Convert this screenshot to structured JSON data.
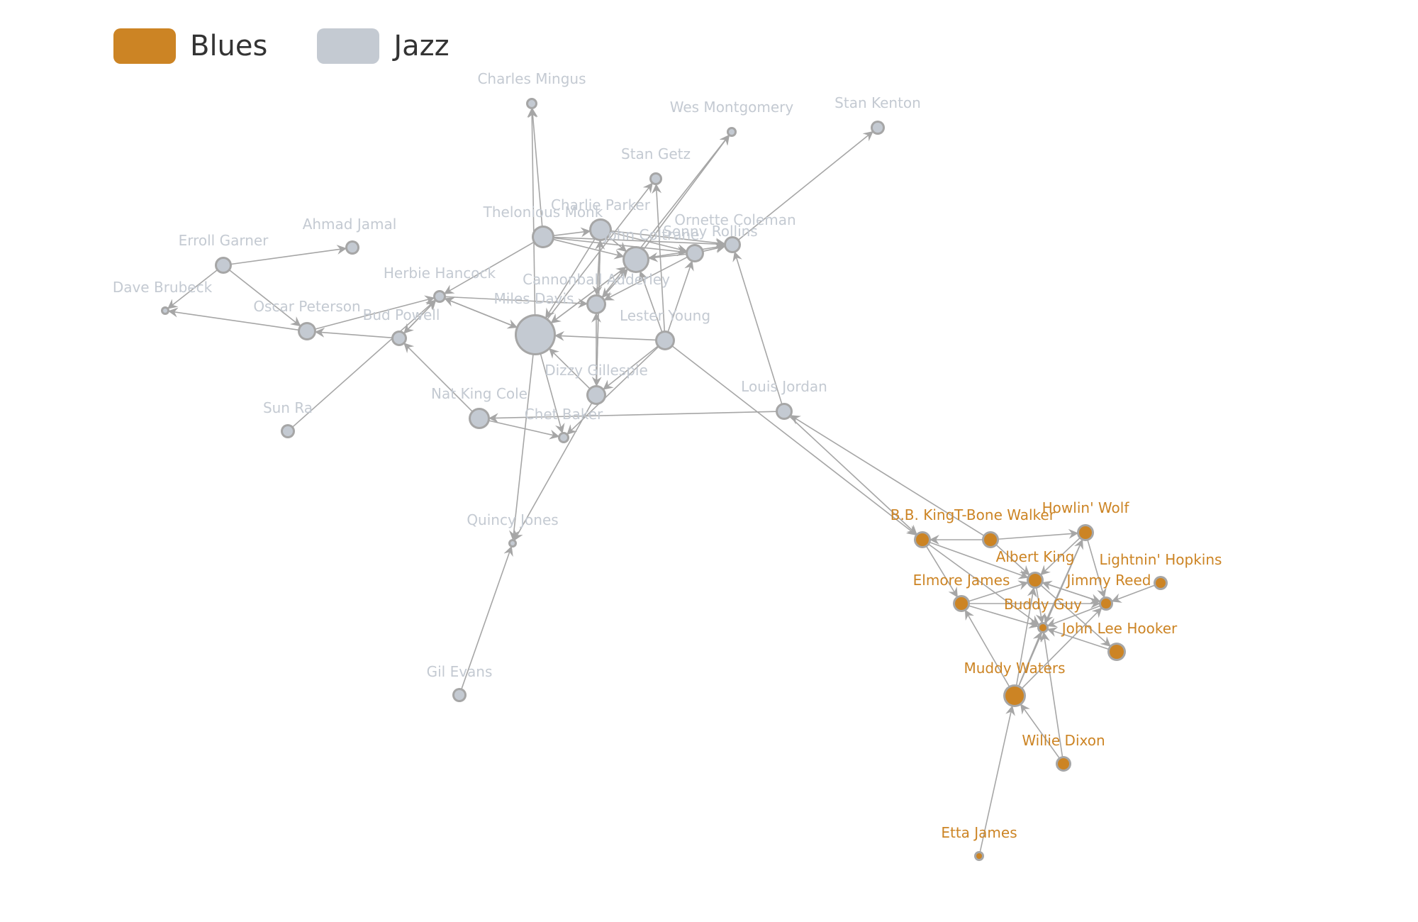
{
  "legend": {
    "items": [
      {
        "label": "Blues",
        "color": "#cc8424"
      },
      {
        "label": "Jazz",
        "color": "#c4cad2"
      }
    ]
  },
  "colors": {
    "blues": "#cc8424",
    "jazz": "#c4cad2",
    "edge": "#a6a6a6",
    "node_ring": "#a6a6a6"
  },
  "nodes": [
    {
      "id": "charles-mingus",
      "label": "Charles Mingus",
      "group": "jazz"
    },
    {
      "id": "wes-montgomery",
      "label": "Wes Montgomery",
      "group": "jazz"
    },
    {
      "id": "stan-kenton",
      "label": "Stan Kenton",
      "group": "jazz"
    },
    {
      "id": "stan-getz",
      "label": "Stan Getz",
      "group": "jazz"
    },
    {
      "id": "charlie-parker",
      "label": "Charlie Parker",
      "group": "jazz"
    },
    {
      "id": "thelonious-monk",
      "label": "Thelonious Monk",
      "group": "jazz"
    },
    {
      "id": "john-coltrane",
      "label": "John Coltrane",
      "group": "jazz"
    },
    {
      "id": "sonny-rollins",
      "label": "Sonny Rollins",
      "group": "jazz"
    },
    {
      "id": "ornette-coleman",
      "label": "Ornette Coleman",
      "group": "jazz"
    },
    {
      "id": "erroll-garner",
      "label": "Erroll Garner",
      "group": "jazz"
    },
    {
      "id": "ahmad-jamal",
      "label": "Ahmad Jamal",
      "group": "jazz"
    },
    {
      "id": "herbie-hancock",
      "label": "Herbie Hancock",
      "group": "jazz"
    },
    {
      "id": "dave-brubeck",
      "label": "Dave Brubeck",
      "group": "jazz"
    },
    {
      "id": "cannonball-adderley",
      "label": "Cannonball Adderley",
      "group": "jazz"
    },
    {
      "id": "miles-davis",
      "label": "Miles Davis",
      "group": "jazz"
    },
    {
      "id": "oscar-peterson",
      "label": "Oscar Peterson",
      "group": "jazz"
    },
    {
      "id": "bud-powell",
      "label": "Bud Powell",
      "group": "jazz"
    },
    {
      "id": "lester-young",
      "label": "Lester Young",
      "group": "jazz"
    },
    {
      "id": "dizzy-gillespie",
      "label": "Dizzy Gillespie",
      "group": "jazz"
    },
    {
      "id": "louis-jordan",
      "label": "Louis Jordan",
      "group": "jazz"
    },
    {
      "id": "nat-king-cole",
      "label": "Nat King Cole",
      "group": "jazz"
    },
    {
      "id": "sun-ra",
      "label": "Sun Ra",
      "group": "jazz"
    },
    {
      "id": "chet-baker",
      "label": "Chet Baker",
      "group": "jazz"
    },
    {
      "id": "quincy-jones",
      "label": "Quincy Jones",
      "group": "jazz"
    },
    {
      "id": "gil-evans",
      "label": "Gil Evans",
      "group": "jazz"
    },
    {
      "id": "howlin-wolf",
      "label": "Howlin' Wolf",
      "group": "blues"
    },
    {
      "id": "bb-king",
      "label": "B.B. King",
      "group": "blues"
    },
    {
      "id": "t-bone-walker",
      "label": "T-Bone Walker",
      "group": "blues"
    },
    {
      "id": "albert-king",
      "label": "Albert King",
      "group": "blues"
    },
    {
      "id": "lightnin-hopkins",
      "label": "Lightnin' Hopkins",
      "group": "blues"
    },
    {
      "id": "elmore-james",
      "label": "Elmore James",
      "group": "blues"
    },
    {
      "id": "jimmy-reed",
      "label": "Jimmy Reed",
      "group": "blues"
    },
    {
      "id": "buddy-guy",
      "label": "Buddy Guy",
      "group": "blues"
    },
    {
      "id": "john-lee-hooker",
      "label": "John Lee Hooker",
      "group": "blues"
    },
    {
      "id": "muddy-waters",
      "label": "Muddy Waters",
      "group": "blues"
    },
    {
      "id": "willie-dixon",
      "label": "Willie Dixon",
      "group": "blues"
    },
    {
      "id": "etta-james",
      "label": "Etta James",
      "group": "blues"
    }
  ],
  "edges": [
    [
      "thelonious-monk",
      "charles-mingus"
    ],
    [
      "miles-davis",
      "charles-mingus"
    ],
    [
      "john-coltrane",
      "wes-montgomery"
    ],
    [
      "cannonball-adderley",
      "wes-montgomery"
    ],
    [
      "ornette-coleman",
      "stan-kenton"
    ],
    [
      "miles-davis",
      "stan-getz"
    ],
    [
      "lester-young",
      "stan-getz"
    ],
    [
      "thelonious-monk",
      "charlie-parker"
    ],
    [
      "dizzy-gillespie",
      "charlie-parker"
    ],
    [
      "charlie-parker",
      "john-coltrane"
    ],
    [
      "thelonious-monk",
      "john-coltrane"
    ],
    [
      "miles-davis",
      "john-coltrane"
    ],
    [
      "cannonball-adderley",
      "john-coltrane"
    ],
    [
      "lester-young",
      "john-coltrane"
    ],
    [
      "sonny-rollins",
      "john-coltrane"
    ],
    [
      "charlie-parker",
      "sonny-rollins"
    ],
    [
      "thelonious-monk",
      "sonny-rollins"
    ],
    [
      "lester-young",
      "sonny-rollins"
    ],
    [
      "charlie-parker",
      "ornette-coleman"
    ],
    [
      "thelonious-monk",
      "ornette-coleman"
    ],
    [
      "john-coltrane",
      "ornette-coleman"
    ],
    [
      "sonny-rollins",
      "ornette-coleman"
    ],
    [
      "louis-jordan",
      "ornette-coleman"
    ],
    [
      "erroll-garner",
      "ahmad-jamal"
    ],
    [
      "erroll-garner",
      "dave-brubeck"
    ],
    [
      "erroll-garner",
      "oscar-peterson"
    ],
    [
      "thelonious-monk",
      "herbie-hancock"
    ],
    [
      "miles-davis",
      "herbie-hancock"
    ],
    [
      "oscar-peterson",
      "herbie-hancock"
    ],
    [
      "bud-powell",
      "herbie-hancock"
    ],
    [
      "herbie-hancock",
      "bud-powell"
    ],
    [
      "oscar-peterson",
      "dave-brubeck"
    ],
    [
      "charlie-parker",
      "cannonball-adderley"
    ],
    [
      "john-coltrane",
      "cannonball-adderley"
    ],
    [
      "sonny-rollins",
      "cannonball-adderley"
    ],
    [
      "dizzy-gillespie",
      "cannonball-adderley"
    ],
    [
      "herbie-hancock",
      "cannonball-adderley"
    ],
    [
      "lester-young",
      "miles-davis"
    ],
    [
      "herbie-hancock",
      "miles-davis"
    ],
    [
      "charlie-parker",
      "miles-davis"
    ],
    [
      "dizzy-gillespie",
      "miles-davis"
    ],
    [
      "john-coltrane",
      "miles-davis"
    ],
    [
      "bud-powell",
      "oscar-peterson"
    ],
    [
      "sun-ra",
      "herbie-hancock"
    ],
    [
      "nat-king-cole",
      "bud-powell"
    ],
    [
      "louis-jordan",
      "nat-king-cole"
    ],
    [
      "lester-young",
      "chet-baker"
    ],
    [
      "miles-davis",
      "chet-baker"
    ],
    [
      "nat-king-cole",
      "chet-baker"
    ],
    [
      "charlie-parker",
      "dizzy-gillespie"
    ],
    [
      "lester-young",
      "dizzy-gillespie"
    ],
    [
      "miles-davis",
      "quincy-jones"
    ],
    [
      "dizzy-gillespie",
      "quincy-jones"
    ],
    [
      "gil-evans",
      "quincy-jones"
    ],
    [
      "lester-young",
      "bb-king"
    ],
    [
      "t-bone-walker",
      "louis-jordan"
    ],
    [
      "louis-jordan",
      "bb-king"
    ],
    [
      "t-bone-walker",
      "bb-king"
    ],
    [
      "t-bone-walker",
      "howlin-wolf"
    ],
    [
      "muddy-waters",
      "howlin-wolf"
    ],
    [
      "t-bone-walker",
      "albert-king"
    ],
    [
      "bb-king",
      "albert-king"
    ],
    [
      "elmore-james",
      "albert-king"
    ],
    [
      "lightnin-hopkins",
      "jimmy-reed"
    ],
    [
      "albert-king",
      "jimmy-reed"
    ],
    [
      "howlin-wolf",
      "jimmy-reed"
    ],
    [
      "elmore-james",
      "jimmy-reed"
    ],
    [
      "muddy-waters",
      "jimmy-reed"
    ],
    [
      "bb-king",
      "buddy-guy"
    ],
    [
      "elmore-james",
      "buddy-guy"
    ],
    [
      "muddy-waters",
      "buddy-guy"
    ],
    [
      "willie-dixon",
      "buddy-guy"
    ],
    [
      "john-lee-hooker",
      "buddy-guy"
    ],
    [
      "albert-king",
      "buddy-guy"
    ],
    [
      "jimmy-reed",
      "buddy-guy"
    ],
    [
      "howlin-wolf",
      "buddy-guy"
    ],
    [
      "albert-king",
      "john-lee-hooker"
    ],
    [
      "bb-king",
      "elmore-james"
    ],
    [
      "muddy-waters",
      "elmore-james"
    ],
    [
      "willie-dixon",
      "muddy-waters"
    ],
    [
      "etta-james",
      "muddy-waters"
    ],
    [
      "muddy-waters",
      "albert-king"
    ],
    [
      "jimmy-reed",
      "albert-king"
    ],
    [
      "howlin-wolf",
      "albert-king"
    ]
  ]
}
